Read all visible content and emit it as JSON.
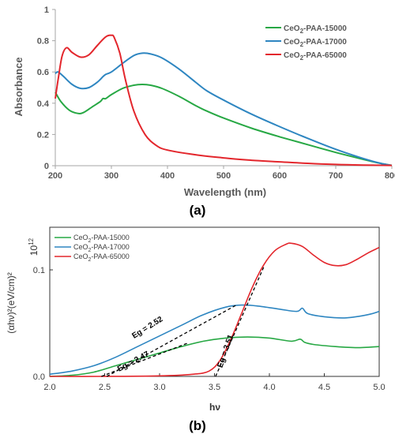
{
  "chart_data": [
    {
      "type": "line",
      "panel_label": "(a)",
      "xlabel": "Wavelength (nm)",
      "ylabel": "Absorbance",
      "xlim": [
        200,
        800
      ],
      "ylim": [
        0,
        1
      ],
      "xticks": [
        "200",
        "300",
        "400",
        "500",
        "600",
        "700",
        "800"
      ],
      "yticks": [
        "0",
        "0.2",
        "0.4",
        "0.6",
        "0.8",
        "1"
      ],
      "legend_position": "top-right",
      "series": [
        {
          "name": "CeO2-PAA-15000",
          "name_base": "CeO",
          "name_sub": "2",
          "name_rest": "-PAA-15000",
          "color": "#27a844",
          "x": [
            200,
            210,
            225,
            240,
            250,
            265,
            280,
            285,
            290,
            300,
            320,
            340,
            355,
            370,
            390,
            420,
            450,
            470,
            500,
            550,
            600,
            650,
            700,
            750,
            780,
            800
          ],
          "y": [
            0.47,
            0.41,
            0.355,
            0.335,
            0.34,
            0.375,
            0.41,
            0.43,
            0.43,
            0.455,
            0.495,
            0.515,
            0.52,
            0.515,
            0.495,
            0.445,
            0.385,
            0.35,
            0.305,
            0.24,
            0.185,
            0.135,
            0.085,
            0.04,
            0.015,
            0.002
          ]
        },
        {
          "name": "CeO2-PAA-17000",
          "name_base": "CeO",
          "name_sub": "2",
          "name_rest": "-PAA-17000",
          "color": "#2e86c1",
          "x": [
            200,
            205,
            215,
            230,
            245,
            260,
            275,
            285,
            290,
            300,
            320,
            340,
            355,
            370,
            390,
            420,
            450,
            470,
            500,
            550,
            600,
            650,
            700,
            750,
            780,
            800
          ],
          "y": [
            0.59,
            0.6,
            0.57,
            0.52,
            0.495,
            0.5,
            0.535,
            0.57,
            0.585,
            0.6,
            0.655,
            0.705,
            0.72,
            0.715,
            0.69,
            0.62,
            0.535,
            0.48,
            0.42,
            0.33,
            0.25,
            0.175,
            0.105,
            0.045,
            0.015,
            0.002
          ]
        },
        {
          "name": "CeO2-PAA-65000",
          "name_base": "CeO",
          "name_sub": "2",
          "name_rest": "-PAA-65000",
          "color": "#e3262c",
          "x": [
            200,
            205,
            212,
            220,
            230,
            245,
            260,
            275,
            290,
            300,
            305,
            315,
            325,
            340,
            360,
            380,
            400,
            450,
            500,
            550,
            600,
            650,
            700,
            750,
            800
          ],
          "y": [
            0.43,
            0.55,
            0.7,
            0.755,
            0.725,
            0.695,
            0.71,
            0.77,
            0.825,
            0.835,
            0.82,
            0.72,
            0.55,
            0.35,
            0.2,
            0.13,
            0.1,
            0.07,
            0.05,
            0.035,
            0.025,
            0.015,
            0.008,
            0.004,
            0.002
          ]
        }
      ]
    },
    {
      "type": "line",
      "panel_label": "(b)",
      "xlabel": "hν",
      "ylabel": "(αhν)²(eV/cm)²",
      "scale_label": "10",
      "scale_exponent": "12",
      "xlim": [
        2.0,
        5.0
      ],
      "ylim": [
        0,
        0.14
      ],
      "xticks": [
        "2.0",
        "2.5",
        "3.0",
        "3.5",
        "4.0",
        "4.5",
        "5.0"
      ],
      "yticks": [
        "0.0",
        "0.1"
      ],
      "legend_position": "top-left",
      "series": [
        {
          "name": "CeO2-PAA-15000",
          "name_base": "CeO",
          "name_sub": "2",
          "name_rest": "-PAA-15000",
          "color": "#27a844",
          "x": [
            2.0,
            2.2,
            2.4,
            2.6,
            2.8,
            3.0,
            3.2,
            3.4,
            3.6,
            3.8,
            4.0,
            4.2,
            4.28,
            4.32,
            4.4,
            4.6,
            4.8,
            5.0
          ],
          "y": [
            0.0,
            0.001,
            0.004,
            0.01,
            0.016,
            0.022,
            0.028,
            0.033,
            0.036,
            0.037,
            0.036,
            0.033,
            0.035,
            0.032,
            0.03,
            0.028,
            0.027,
            0.028
          ]
        },
        {
          "name": "CeO2-PAA-17000",
          "name_base": "CeO",
          "name_sub": "2",
          "name_rest": "-PAA-17000",
          "color": "#2e86c1",
          "x": [
            2.0,
            2.2,
            2.4,
            2.6,
            2.8,
            3.0,
            3.2,
            3.4,
            3.6,
            3.75,
            3.9,
            4.1,
            4.25,
            4.3,
            4.35,
            4.5,
            4.7,
            4.9,
            5.0
          ],
          "y": [
            0.002,
            0.005,
            0.01,
            0.018,
            0.028,
            0.038,
            0.048,
            0.058,
            0.065,
            0.067,
            0.066,
            0.063,
            0.061,
            0.064,
            0.059,
            0.056,
            0.055,
            0.058,
            0.061
          ]
        },
        {
          "name": "CeO2-PAA-65000",
          "name_base": "CeO",
          "name_sub": "2",
          "name_rest": "-PAA-65000",
          "color": "#e3262c",
          "x": [
            2.0,
            2.5,
            3.0,
            3.3,
            3.45,
            3.55,
            3.65,
            3.75,
            3.85,
            3.95,
            4.05,
            4.15,
            4.2,
            4.3,
            4.4,
            4.5,
            4.6,
            4.7,
            4.8,
            4.9,
            5.0
          ],
          "y": [
            0.0,
            0.0,
            0.0005,
            0.002,
            0.005,
            0.015,
            0.035,
            0.06,
            0.085,
            0.105,
            0.118,
            0.124,
            0.125,
            0.122,
            0.114,
            0.107,
            0.104,
            0.105,
            0.11,
            0.116,
            0.121
          ]
        }
      ],
      "annotations": [
        {
          "text": "Eg = 2.52",
          "rotation_deg": -32,
          "x": 2.9,
          "y": 0.044
        },
        {
          "text": "Eg = 2.47",
          "rotation_deg": -28,
          "x": 2.77,
          "y": 0.012
        },
        {
          "text": "Eg = 3.51",
          "rotation_deg": -71,
          "x": 3.62,
          "y": 0.023
        }
      ],
      "tangent_lines": [
        {
          "x1": 2.52,
          "y1": 0.0,
          "x2": 3.7,
          "y2": 0.067
        },
        {
          "x1": 2.47,
          "y1": 0.0,
          "x2": 3.25,
          "y2": 0.031
        },
        {
          "x1": 3.51,
          "y1": 0.0,
          "x2": 3.95,
          "y2": 0.103
        }
      ]
    }
  ]
}
